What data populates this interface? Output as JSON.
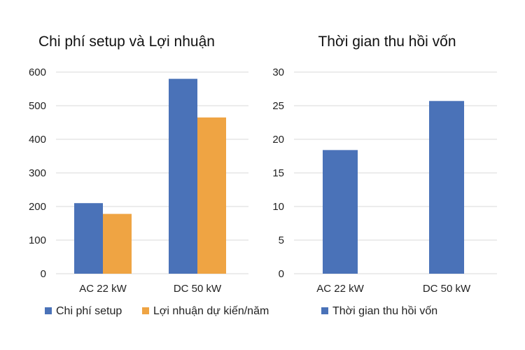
{
  "chart_data": [
    {
      "type": "bar",
      "title": "Chi phí setup và Lợi nhuận",
      "categories": [
        "AC 22 kW",
        "DC 50 kW"
      ],
      "series": [
        {
          "name": "Chi phí setup",
          "values": [
            210,
            580
          ],
          "color": "#4a72b8"
        },
        {
          "name": "Lợi nhuận dự kiến/năm",
          "values": [
            178,
            465
          ],
          "color": "#efa443"
        }
      ],
      "ylim": [
        0,
        600
      ],
      "yticks": [
        0,
        100,
        200,
        300,
        400,
        500,
        600
      ],
      "grid": true,
      "legend": "bottom"
    },
    {
      "type": "bar",
      "title": "Thời gian thu hồi vốn",
      "categories": [
        "AC 22 kW",
        "DC 50 kW"
      ],
      "series": [
        {
          "name": "Thời gian thu hồi vốn",
          "values": [
            18.4,
            25.7
          ],
          "color": "#4a72b8"
        }
      ],
      "ylim": [
        0,
        30
      ],
      "yticks": [
        0,
        5,
        10,
        15,
        20,
        25,
        30
      ],
      "grid": true,
      "legend": "bottom"
    }
  ]
}
